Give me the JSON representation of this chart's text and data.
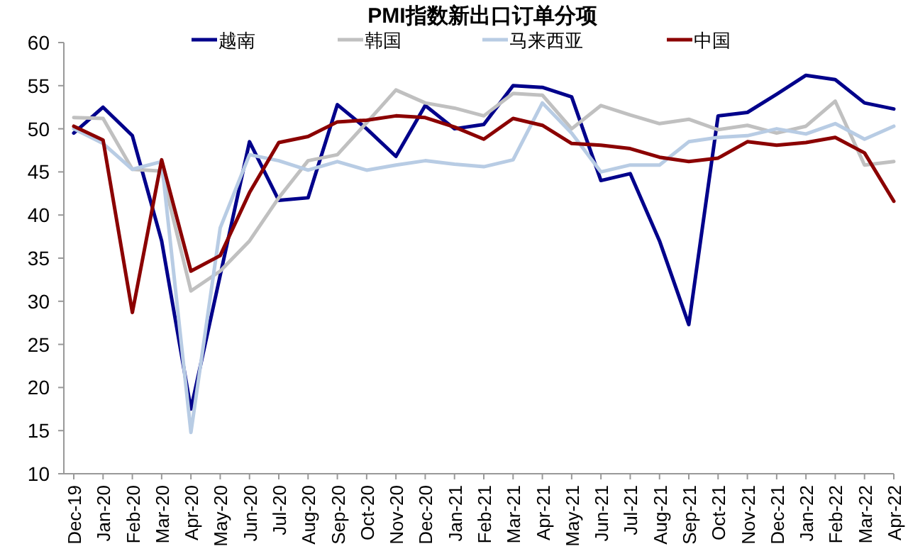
{
  "chart_data": {
    "type": "line",
    "title": "PMI指数新出口订单分项",
    "categories": [
      "Dec-19",
      "Jan-20",
      "Feb-20",
      "Mar-20",
      "Apr-20",
      "May-20",
      "Jun-20",
      "Jul-20",
      "Aug-20",
      "Sep-20",
      "Oct-20",
      "Nov-20",
      "Dec-20",
      "Jan-21",
      "Feb-21",
      "Mar-21",
      "Apr-21",
      "May-21",
      "Jun-21",
      "Jul-21",
      "Aug-21",
      "Sep-21",
      "Oct-21",
      "Nov-21",
      "Dec-21",
      "Jan-22",
      "Feb-22",
      "Mar-22",
      "Apr-22"
    ],
    "series": [
      {
        "name": "越南",
        "color": "#00008b",
        "values": [
          49.5,
          52.5,
          49.2,
          37,
          17.5,
          33,
          48.5,
          41.7,
          42,
          52.8,
          50,
          46.8,
          52.7,
          50,
          50.5,
          55,
          54.8,
          53.7,
          44,
          44.8,
          37,
          27.3,
          51.5,
          51.9,
          54,
          56.2,
          55.7,
          53,
          52.3
        ]
      },
      {
        "name": "韩国",
        "color": "#c0c0c0",
        "values": [
          51.3,
          51.2,
          45.3,
          45.1,
          31.2,
          33.5,
          37,
          42,
          46.3,
          47,
          50.7,
          54.5,
          53,
          52.4,
          51.5,
          54.1,
          53.9,
          50,
          52.7,
          51.6,
          50.6,
          51.1,
          49.9,
          50.4,
          49.5,
          50.3,
          53.2,
          45.8,
          46.2
        ]
      },
      {
        "name": "马来西亚",
        "color": "#b8cce4",
        "values": [
          50,
          48.3,
          45.3,
          46.2,
          14.8,
          38.5,
          47,
          46.3,
          45.2,
          46.2,
          45.2,
          45.8,
          46.3,
          45.9,
          45.6,
          46.4,
          53,
          49.5,
          45,
          45.8,
          45.8,
          48.5,
          49,
          49.2,
          50,
          49.4,
          50.6,
          48.8,
          50.3
        ]
      },
      {
        "name": "中国",
        "color": "#8b0000",
        "values": [
          50.3,
          48.7,
          28.7,
          46.4,
          33.5,
          35.3,
          42.6,
          48.4,
          49.1,
          50.8,
          51,
          51.5,
          51.3,
          50.2,
          48.8,
          51.2,
          50.4,
          48.3,
          48.1,
          47.7,
          46.7,
          46.2,
          46.6,
          48.5,
          48.1,
          48.4,
          49,
          47.2,
          41.6
        ]
      }
    ],
    "ylim": [
      10,
      60
    ],
    "yticks": [
      10,
      15,
      20,
      25,
      30,
      35,
      40,
      45,
      50,
      55,
      60
    ],
    "grid": false,
    "legend": "top",
    "marker": "none",
    "line_style": "solid"
  }
}
